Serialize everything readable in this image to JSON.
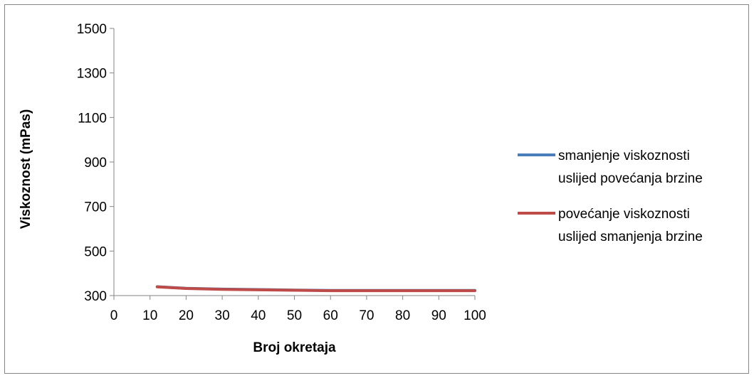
{
  "chart_data": {
    "type": "line",
    "xlabel": "Broj okretaja",
    "ylabel": "Viskoznost (mPas)",
    "xlim": [
      0,
      100
    ],
    "ylim": [
      300,
      1500
    ],
    "xticks": [
      "0",
      "10",
      "20",
      "30",
      "40",
      "50",
      "60",
      "70",
      "80",
      "90",
      "100"
    ],
    "yticks": [
      "300",
      "500",
      "700",
      "900",
      "1100",
      "1300",
      "1500"
    ],
    "grid": false,
    "legend_position": "right",
    "series": [
      {
        "name": "smanjenje viskoznosti uslijed povećanja brzine",
        "name_lines": [
          "smanjenje viskoznosti",
          "uslijed povećanja brzine"
        ],
        "color": "#4A7EBB",
        "x": [
          12,
          20,
          30,
          50,
          60,
          100
        ],
        "y": [
          340,
          333,
          329,
          325,
          323,
          323
        ]
      },
      {
        "name": "povećanje viskoznosti uslijed smanjenja brzine",
        "name_lines": [
          "povećanje viskoznosti",
          "uslijed smanjenja brzine"
        ],
        "color": "#BE4B48",
        "x": [
          12,
          20,
          30,
          50,
          60,
          100
        ],
        "y": [
          339,
          332,
          328,
          324,
          322,
          322
        ]
      }
    ]
  }
}
